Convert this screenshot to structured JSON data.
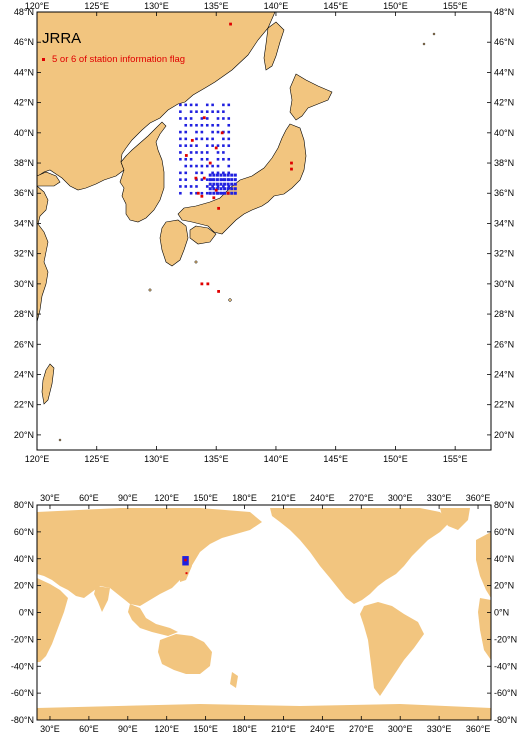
{
  "top_map": {
    "title": "JRRA",
    "legend_label": "5 or 6 of station information flag",
    "x_ticks": [
      "120°E",
      "125°E",
      "130°E",
      "135°E",
      "140°E",
      "145°E",
      "150°E",
      "155°E"
    ],
    "y_ticks": [
      "48°N",
      "46°N",
      "44°N",
      "42°N",
      "40°N",
      "38°N",
      "36°N",
      "34°N",
      "32°N",
      "30°N",
      "28°N",
      "26°N",
      "24°N",
      "22°N",
      "20°N"
    ],
    "lon_range": [
      120,
      158
    ],
    "lat_range": [
      19,
      48
    ]
  },
  "bottom_map": {
    "x_ticks": [
      "30°E",
      "60°E",
      "90°E",
      "120°E",
      "150°E",
      "180°E",
      "210°E",
      "240°E",
      "270°E",
      "300°E",
      "330°E",
      "360°E"
    ],
    "y_ticks": [
      "80°N",
      "60°N",
      "40°N",
      "20°N",
      "0°N",
      "-20°N",
      "-40°N",
      "-60°N",
      "-80°N"
    ],
    "lon_range": [
      20,
      370
    ],
    "lat_range": [
      -80,
      80
    ]
  },
  "colors": {
    "land": "#f2c57f",
    "ocean": "#ffffff",
    "flag_stations": "#e00000",
    "other_stations": "#2020e0",
    "frame": "#000000"
  }
}
